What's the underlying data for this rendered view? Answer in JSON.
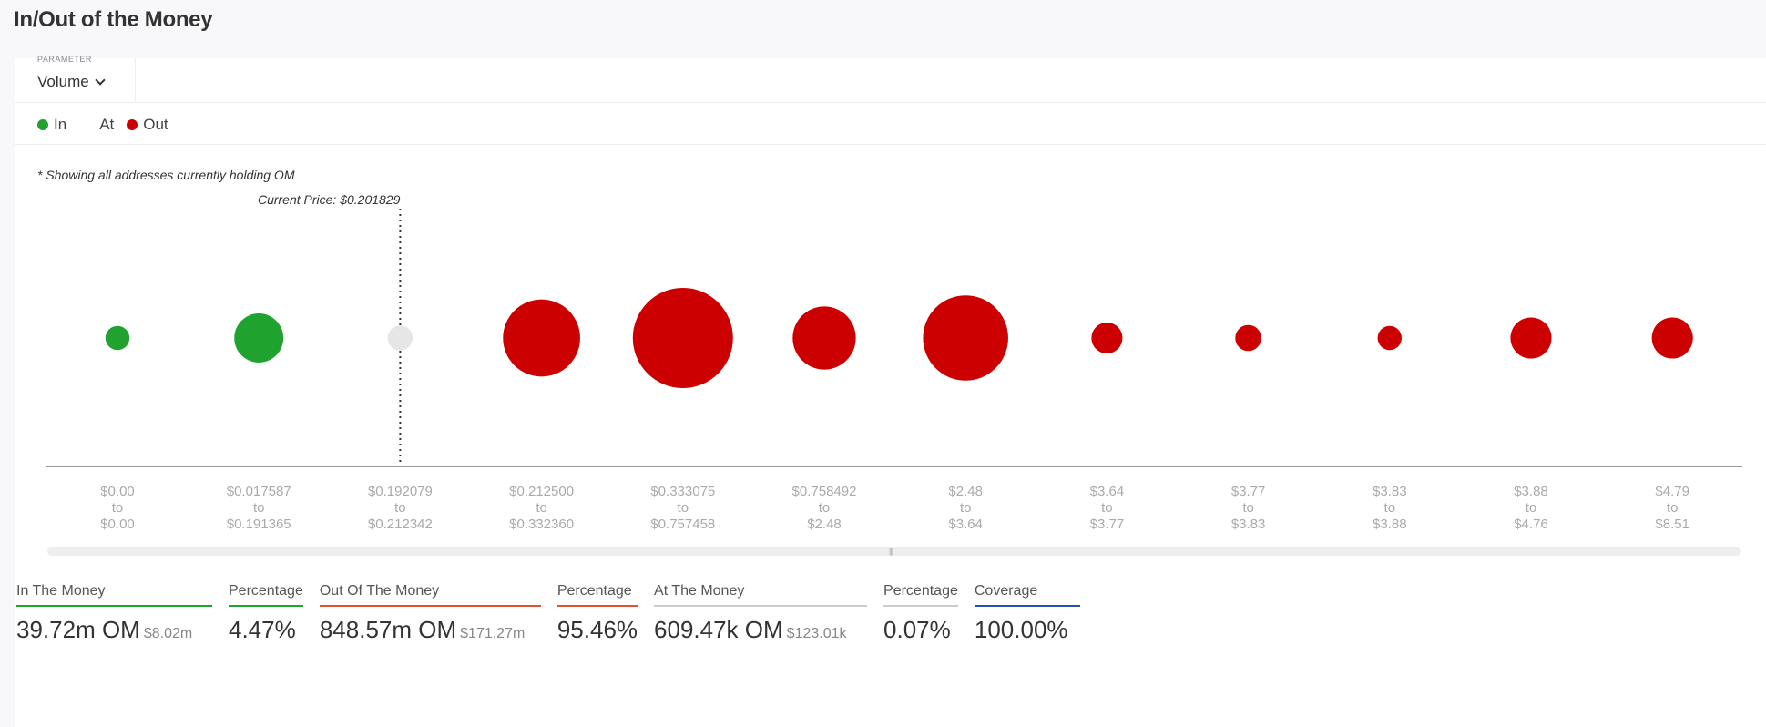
{
  "page": {
    "title": "In/Out of the Money"
  },
  "filter": {
    "label": "PARAMETER",
    "value": "Volume"
  },
  "legend": [
    {
      "label": "In",
      "color": "#1fa22e"
    },
    {
      "label": "At",
      "color": ""
    },
    {
      "label": "Out",
      "color": "#cc0000"
    }
  ],
  "note": "* Showing all addresses currently holding OM",
  "chart_data": {
    "type": "scatter",
    "title": "",
    "current_price_label": "Current Price: $0.201829",
    "current_price_bucket": 2,
    "categories": [
      [
        "$0.00",
        "to",
        "$0.00"
      ],
      [
        "$0.017587",
        "to",
        "$0.191365"
      ],
      [
        "$0.192079",
        "to",
        "$0.212342"
      ],
      [
        "$0.212500",
        "to",
        "$0.332360"
      ],
      [
        "$0.333075",
        "to",
        "$0.757458"
      ],
      [
        "$0.758492",
        "to",
        "$2.48"
      ],
      [
        "$2.48",
        "to",
        "$3.64"
      ],
      [
        "$3.64",
        "to",
        "$3.77"
      ],
      [
        "$3.77",
        "to",
        "$3.83"
      ],
      [
        "$3.83",
        "to",
        "$3.88"
      ],
      [
        "$3.88",
        "to",
        "$4.76"
      ],
      [
        "$4.79",
        "to",
        "$8.51"
      ]
    ],
    "status": [
      "in",
      "in",
      "at",
      "out",
      "out",
      "out",
      "out",
      "out",
      "out",
      "out",
      "out",
      "out"
    ],
    "relative_size": [
      0.24,
      0.49,
      0.25,
      0.77,
      1.0,
      0.63,
      0.85,
      0.31,
      0.26,
      0.24,
      0.41,
      0.41
    ],
    "colors": {
      "in": "#1fa22e",
      "at": "#e6e6e6",
      "out": "#cc0000"
    }
  },
  "stats": [
    {
      "label": "In The Money",
      "value": "39.72m OM",
      "sub": "$8.02m",
      "color": "#1fa22e"
    },
    {
      "label": "Percentage",
      "value": "4.47%",
      "sub": "",
      "color": "#1fa22e"
    },
    {
      "label": "Out Of The Money",
      "value": "848.57m OM",
      "sub": "$171.27m",
      "color": "#e0533a"
    },
    {
      "label": "Percentage",
      "value": "95.46%",
      "sub": "",
      "color": "#e0533a"
    },
    {
      "label": "At The Money",
      "value": "609.47k OM",
      "sub": "$123.01k",
      "color": "#cccccc"
    },
    {
      "label": "Percentage",
      "value": "0.07%",
      "sub": "",
      "color": "#cccccc"
    },
    {
      "label": "Coverage",
      "value": "100.00%",
      "sub": "",
      "color": "#2a4fb3"
    }
  ]
}
